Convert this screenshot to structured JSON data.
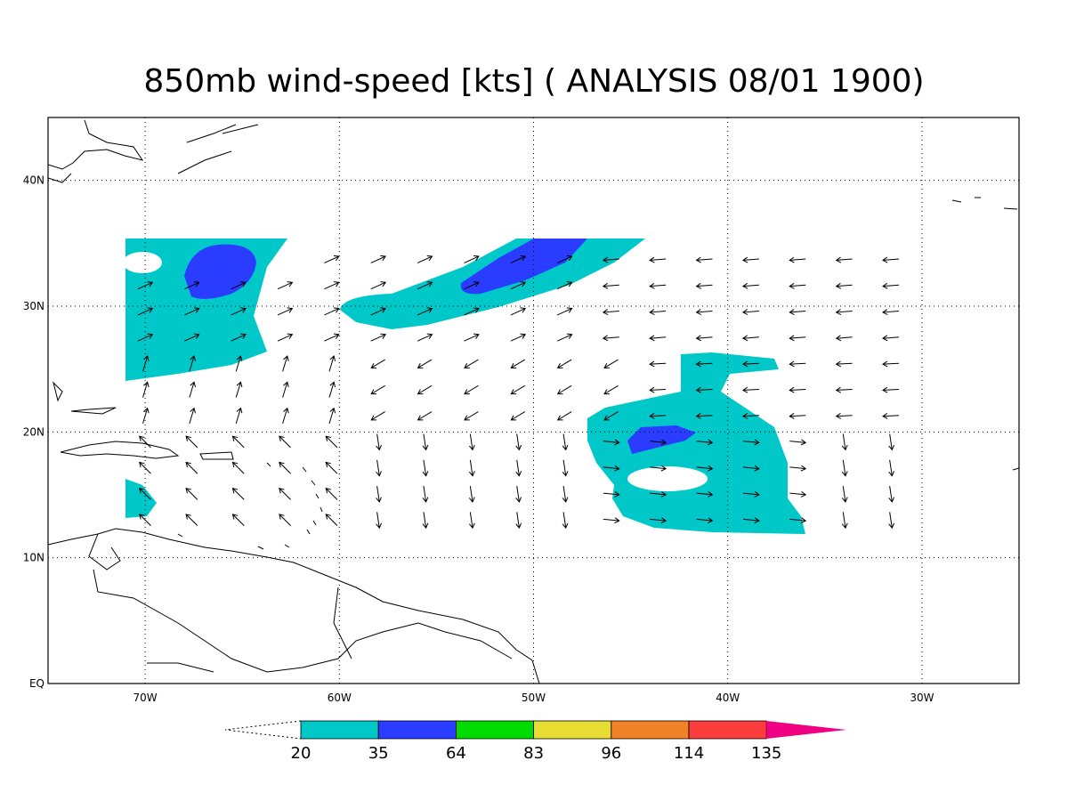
{
  "title": "850mb wind-speed [kts] ( ANALYSIS 08/01 1900)",
  "map": {
    "lonlim": [
      -75,
      -25
    ],
    "latlim": [
      0,
      45
    ],
    "lon_ticks": [
      {
        "value": -70,
        "label": "70W"
      },
      {
        "value": -60,
        "label": "60W"
      },
      {
        "value": -50,
        "label": "50W"
      },
      {
        "value": -40,
        "label": "40W"
      },
      {
        "value": -30,
        "label": "30W"
      }
    ],
    "lat_ticks": [
      {
        "value": 0,
        "label": "EQ"
      },
      {
        "value": 10,
        "label": "10N"
      },
      {
        "value": 20,
        "label": "20N"
      },
      {
        "value": 30,
        "label": "30N"
      },
      {
        "value": 40,
        "label": "40N"
      }
    ],
    "grid": true
  },
  "colorbar": {
    "levels": [
      20,
      35,
      64,
      83,
      96,
      114,
      135
    ],
    "colors": [
      "#00c8c8",
      "#2a3cff",
      "#00dc00",
      "#e6dc32",
      "#f08228",
      "#fa3c3c",
      "#f00082"
    ]
  }
}
